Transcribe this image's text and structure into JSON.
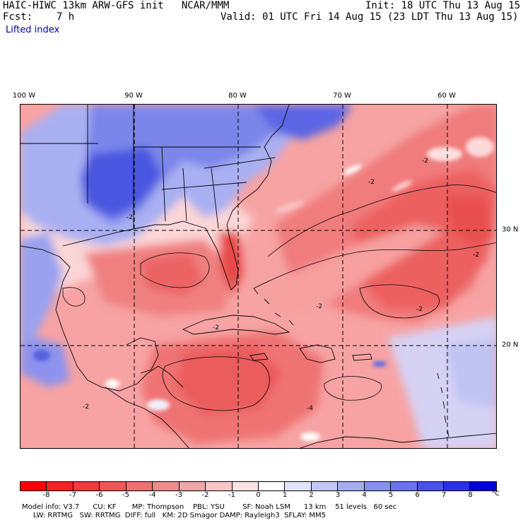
{
  "header": {
    "title": "HAIC-HIWC 13km ARW-GFS init   NCAR/MMM",
    "forecast": "Fcst:    7 h",
    "init": "Init: 18 UTC Thu 13 Aug 15",
    "valid": "Valid: 01 UTC Fri 14 Aug 15 (23 LDT Thu 13 Aug 15)",
    "field": "Lifted index"
  },
  "map": {
    "longitude_labels": [
      "100 W",
      "90 W",
      "80 W",
      "70 W",
      "60 W"
    ],
    "latitude_labels": [
      "30 N",
      "20 N"
    ],
    "contour_labels": [
      "-2",
      "-2",
      "-2",
      "-4",
      "-2",
      "-2",
      "-2",
      "-2",
      "-2"
    ],
    "colors": {
      "ocean_warm": "#f58a8a",
      "ocean_pink": "#f8b0b0",
      "land_blue": "#6f7de8",
      "deep_blue": "#2a3ad8",
      "coast": "#000000"
    }
  },
  "colorbar": {
    "ticks": [
      "-8",
      "-7",
      "-6",
      "-5",
      "-4",
      "-3",
      "-2",
      "-1",
      "0",
      "1",
      "2",
      "3",
      "4",
      "5",
      "6",
      "7",
      "8"
    ],
    "unit": "°C",
    "colors": [
      "#ff0000",
      "#f52222",
      "#f03c3c",
      "#ec5858",
      "#ee7272",
      "#f08b8b",
      "#f4a6a6",
      "#f9c5c5",
      "#fce3e3",
      "#ffffff",
      "#dfe3fb",
      "#c3c8f7",
      "#a5acf2",
      "#8890ef",
      "#6a72ec",
      "#4a52e7",
      "#2a31e2",
      "#0000dc"
    ]
  },
  "footer": {
    "line1": "Model info: V3.7      CU: KF       MP: Thompson    PBL: YSU        SF: Noah LSM      13 km    51 levels   60 sec",
    "line2": "     LW: RRTMG   SW: RRTMG  DIFF: full   KM: 2D Smagor DAMP: Rayleigh3  SFLAY: MM5"
  }
}
